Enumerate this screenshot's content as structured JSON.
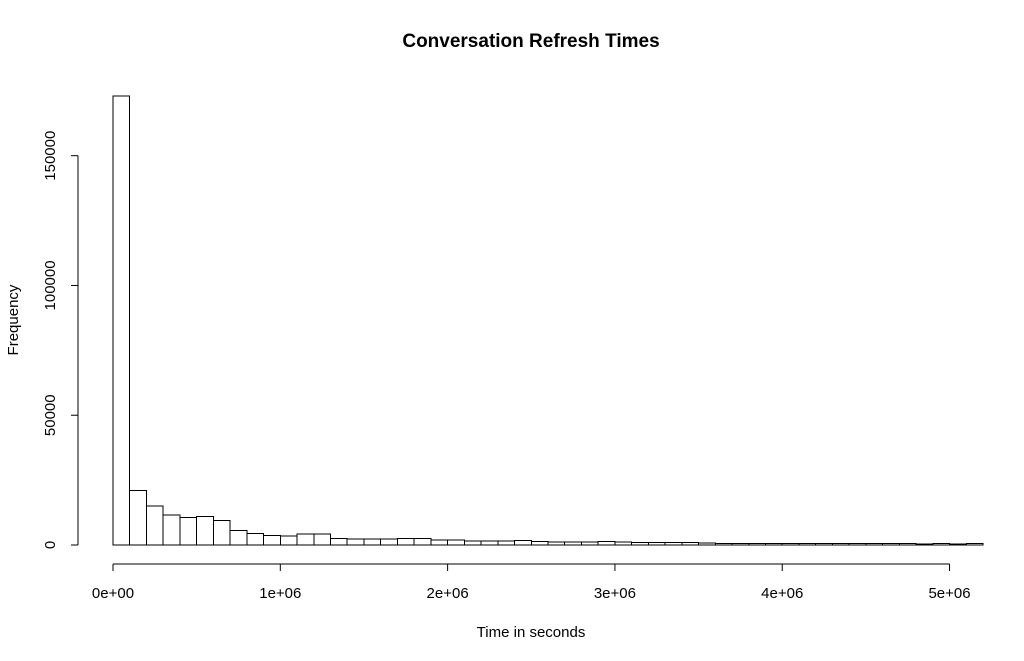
{
  "chart_data": {
    "type": "bar",
    "title": "Conversation Refresh Times",
    "xlabel": "Time in seconds",
    "ylabel": "Frequency",
    "bin_width": 100000,
    "bin_start": 0,
    "values": [
      173000,
      21000,
      15000,
      11500,
      10500,
      11000,
      9500,
      5500,
      4500,
      3700,
      3500,
      4300,
      4200,
      2600,
      2400,
      2300,
      2300,
      2600,
      2500,
      1900,
      1900,
      1600,
      1600,
      1500,
      1800,
      1400,
      1200,
      1100,
      1100,
      1300,
      1100,
      1000,
      900,
      1000,
      900,
      700,
      600,
      600,
      600,
      600,
      600,
      500,
      500,
      500,
      500,
      500,
      500,
      500,
      400,
      500,
      300,
      600
    ],
    "xlim": [
      0,
      5200000
    ],
    "ylim": [
      0,
      173000
    ],
    "x_ticks": [
      0,
      1000000,
      2000000,
      3000000,
      4000000,
      5000000
    ],
    "x_tick_labels": [
      "0e+00",
      "1e+06",
      "2e+06",
      "3e+06",
      "4e+06",
      "5e+06"
    ],
    "y_ticks": [
      0,
      50000,
      100000,
      150000
    ],
    "y_tick_labels": [
      "0",
      "50000",
      "100000",
      "150000"
    ],
    "grid": false,
    "legend": "none",
    "bar_fill": "#ffffff",
    "bar_stroke": "#000000"
  }
}
